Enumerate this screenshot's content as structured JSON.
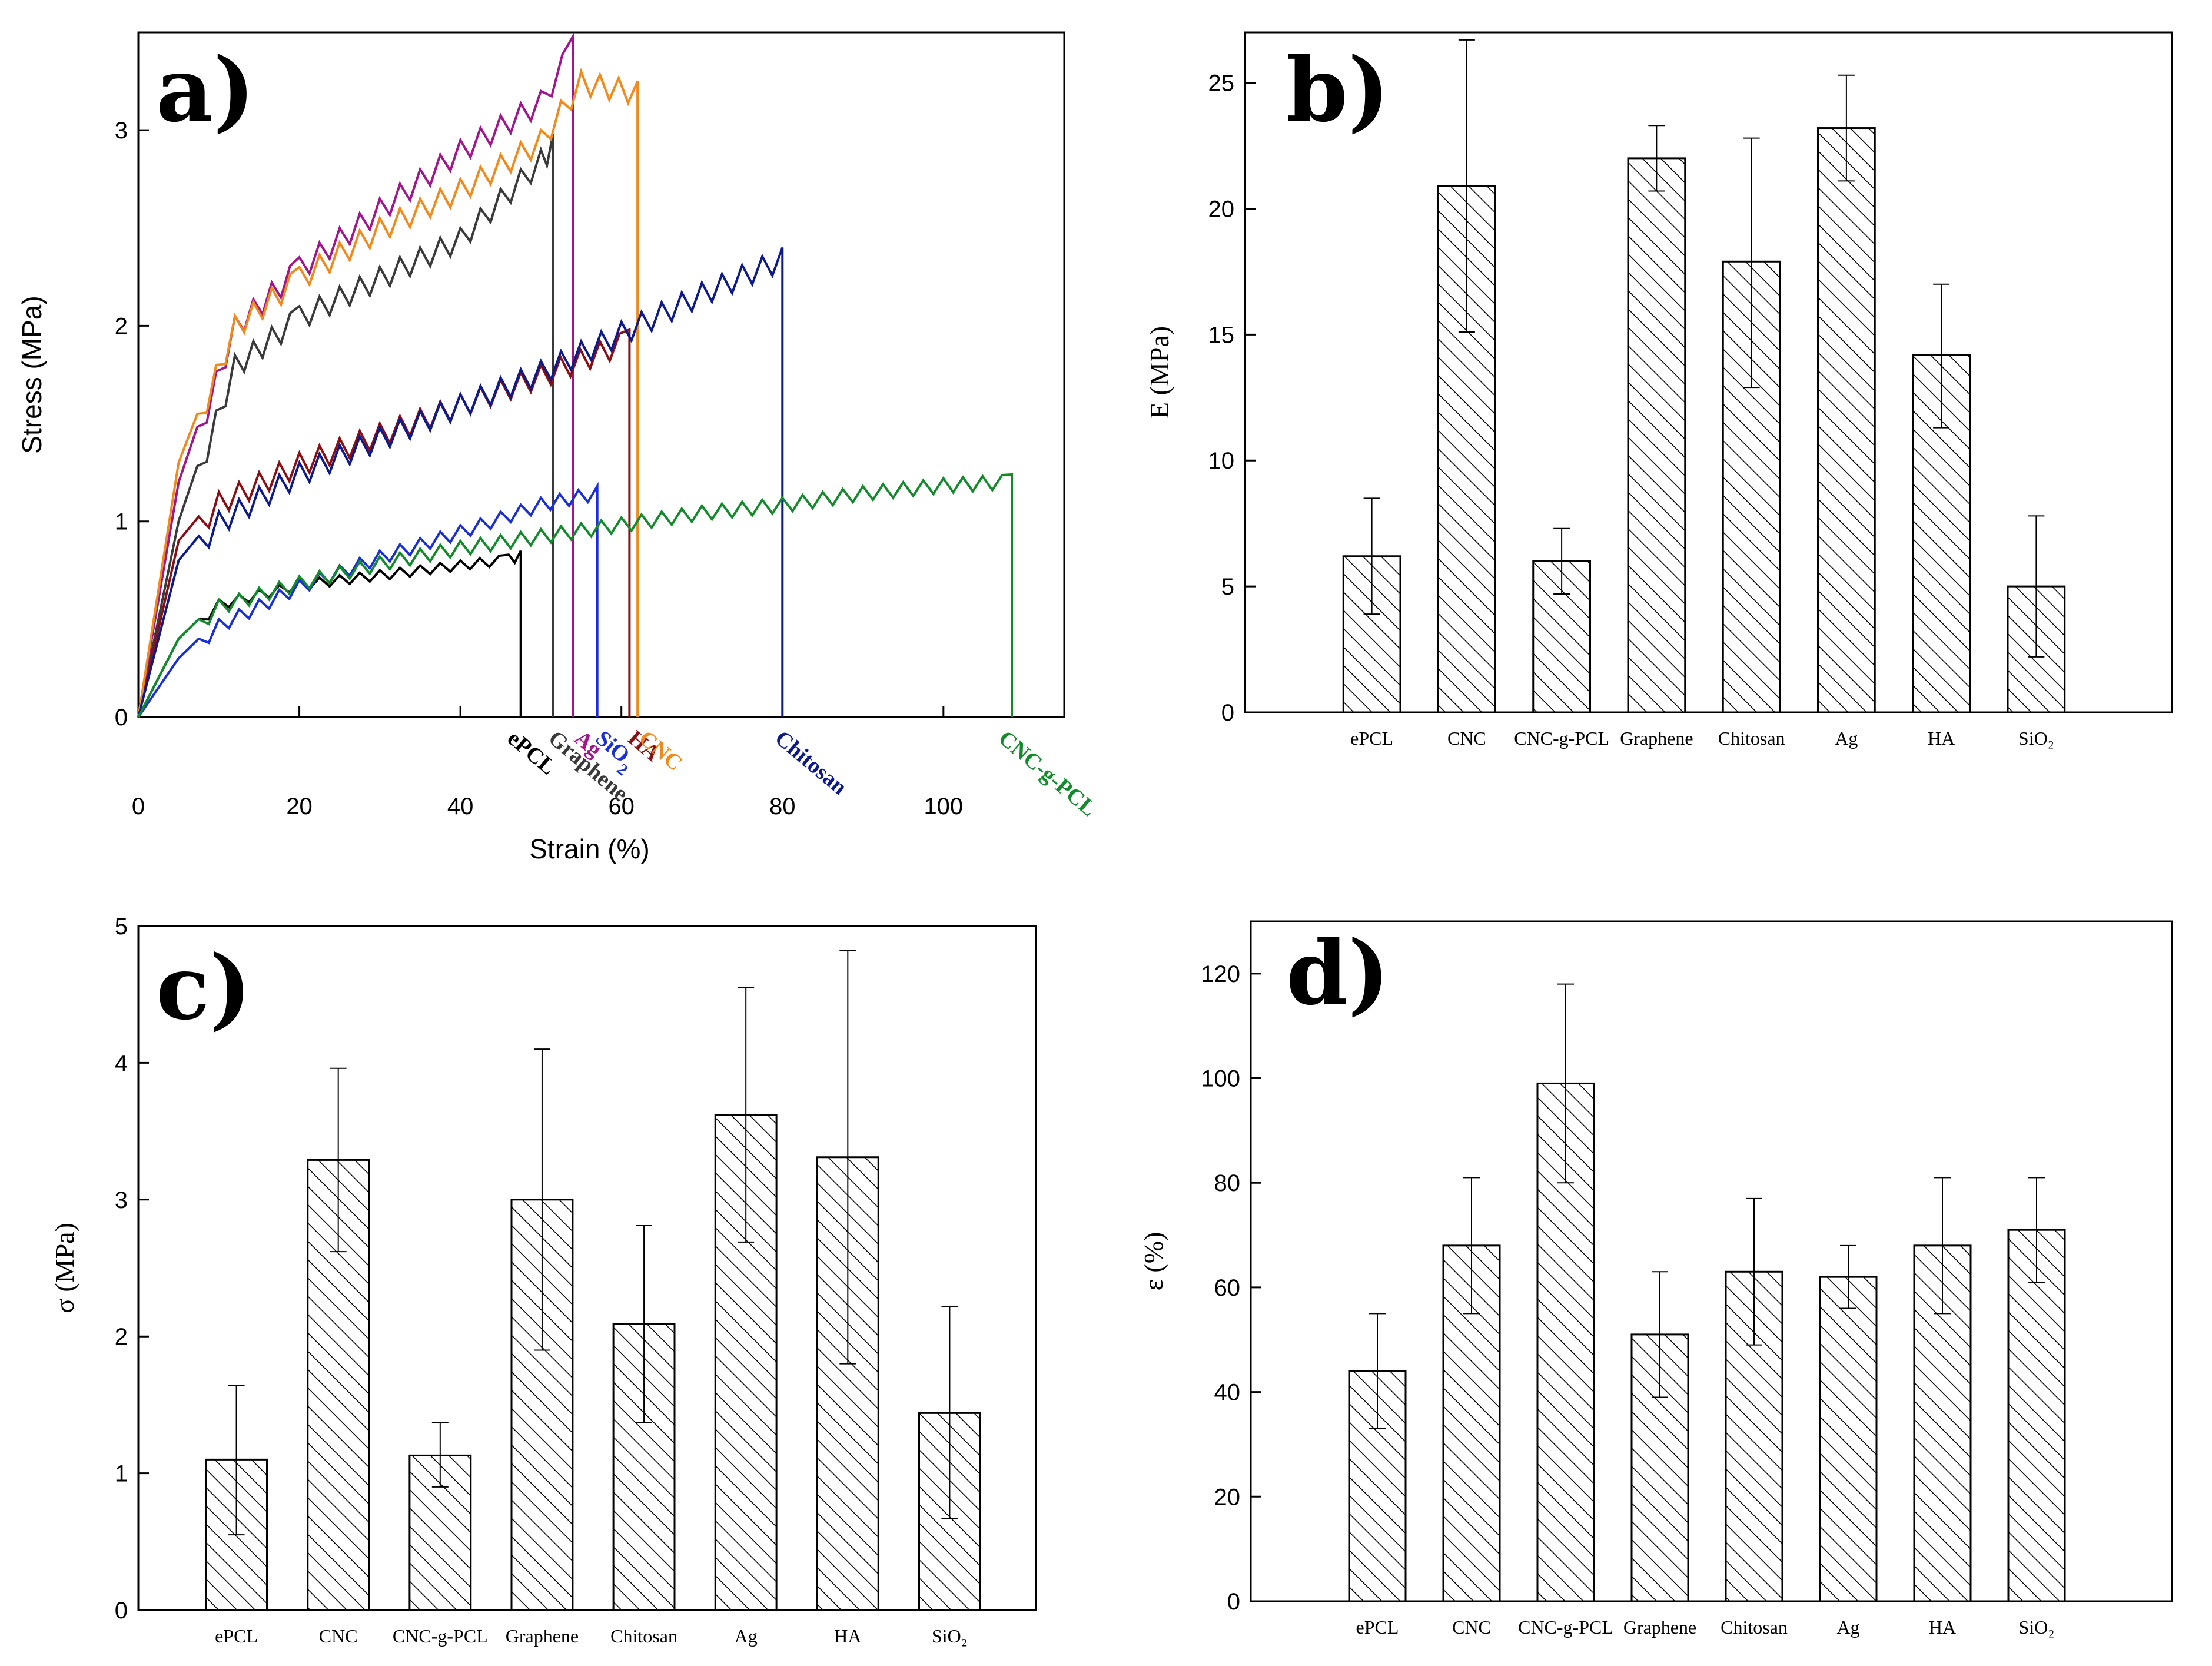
{
  "chart_data": [
    {
      "panel": "a)",
      "type": "line",
      "xlabel": "Strain (%)",
      "ylabel": "Stress (MPa)",
      "xlim": [
        0,
        115
      ],
      "ylim": [
        0,
        3.5
      ],
      "xticks": [
        "0",
        "20",
        "40",
        "60",
        "80",
        "100"
      ],
      "yticks": [
        "0",
        "1",
        "2",
        "3"
      ],
      "series": [
        {
          "name": "ePCL",
          "color": "#000000",
          "x": [
            0,
            5,
            10,
            20,
            30,
            40,
            46,
            47.5
          ],
          "y": [
            0,
            0.4,
            0.6,
            0.7,
            0.75,
            0.8,
            0.83,
            0.85
          ]
        },
        {
          "name": "Graphene",
          "color": "#3a3a3a",
          "x": [
            0,
            5,
            12,
            20,
            30,
            40,
            50,
            51.5
          ],
          "y": [
            0,
            1.0,
            1.85,
            2.1,
            2.3,
            2.5,
            2.9,
            2.98
          ]
        },
        {
          "name": "Ag",
          "color": "#a0168c",
          "x": [
            0,
            5,
            12,
            20,
            30,
            40,
            50,
            54
          ],
          "y": [
            0,
            1.2,
            2.05,
            2.35,
            2.65,
            2.95,
            3.2,
            3.48
          ]
        },
        {
          "name": "SiO2",
          "color": "#1a2fd6",
          "x": [
            0,
            5,
            10,
            20,
            30,
            40,
            50,
            57
          ],
          "y": [
            0,
            0.3,
            0.5,
            0.7,
            0.85,
            0.98,
            1.12,
            1.18
          ]
        },
        {
          "name": "HA",
          "color": "#8a0f14",
          "x": [
            0,
            5,
            10,
            20,
            30,
            40,
            50,
            61
          ],
          "y": [
            0,
            0.9,
            1.15,
            1.35,
            1.5,
            1.65,
            1.8,
            1.98
          ]
        },
        {
          "name": "CNC",
          "color": "#f08a1c",
          "x": [
            0,
            5,
            12,
            20,
            30,
            40,
            50,
            55,
            62
          ],
          "y": [
            0,
            1.3,
            2.05,
            2.3,
            2.55,
            2.75,
            3.0,
            3.3,
            3.25
          ]
        },
        {
          "name": "Chitosan",
          "color": "#0c1a8c",
          "x": [
            0,
            5,
            10,
            20,
            30,
            40,
            50,
            60,
            70,
            80
          ],
          "y": [
            0,
            0.8,
            1.05,
            1.3,
            1.48,
            1.65,
            1.82,
            2.02,
            2.22,
            2.4
          ]
        },
        {
          "name": "CNC-g-PCL",
          "color": "#138a2c",
          "x": [
            0,
            5,
            10,
            20,
            30,
            40,
            50,
            60,
            70,
            80,
            90,
            100,
            108.5
          ],
          "y": [
            0,
            0.4,
            0.6,
            0.72,
            0.82,
            0.9,
            0.96,
            1.02,
            1.08,
            1.12,
            1.18,
            1.22,
            1.24
          ]
        }
      ]
    },
    {
      "panel": "b)",
      "type": "bar",
      "xlabel": "",
      "ylabel": "E (MPa)",
      "ylim": [
        0,
        27
      ],
      "yticks": [
        "0",
        "5",
        "10",
        "15",
        "20",
        "25"
      ],
      "categories": [
        "ePCL",
        "CNC",
        "CNC-g-PCL",
        "Graphene",
        "Chitosan",
        "Ag",
        "HA",
        "SiO₂"
      ],
      "values": [
        6.2,
        20.9,
        6.0,
        22.0,
        17.9,
        23.2,
        14.2,
        5.0
      ],
      "err_high": [
        8.5,
        26.7,
        7.3,
        23.3,
        22.8,
        25.3,
        17.0,
        7.8
      ],
      "err_low": [
        3.9,
        15.1,
        4.7,
        20.7,
        12.9,
        21.1,
        11.3,
        2.2
      ]
    },
    {
      "panel": "c)",
      "type": "bar",
      "xlabel": "",
      "ylabel": "σ (MPa)",
      "ylim": [
        0,
        5
      ],
      "yticks": [
        "0",
        "1",
        "2",
        "3",
        "4",
        "5"
      ],
      "categories": [
        "ePCL",
        "CNC",
        "CNC-g-PCL",
        "Graphene",
        "Chitosan",
        "Ag",
        "HA",
        "SiO₂"
      ],
      "values": [
        1.1,
        3.29,
        1.13,
        3.0,
        2.09,
        3.62,
        3.31,
        1.44
      ],
      "err_high": [
        1.64,
        3.96,
        1.37,
        4.1,
        2.81,
        4.55,
        4.82,
        2.22
      ],
      "err_low": [
        0.55,
        2.62,
        0.9,
        1.9,
        1.37,
        2.69,
        1.8,
        0.67
      ]
    },
    {
      "panel": "d)",
      "type": "bar",
      "xlabel": "",
      "ylabel": "ε (%)",
      "ylim": [
        0,
        130
      ],
      "yticks": [
        "0",
        "20",
        "40",
        "60",
        "80",
        "100",
        "120"
      ],
      "categories": [
        "ePCL",
        "CNC",
        "CNC-g-PCL",
        "Graphene",
        "Chitosan",
        "Ag",
        "HA",
        "SiO₂"
      ],
      "values": [
        44,
        68,
        99,
        51,
        63,
        62,
        68,
        71
      ],
      "err_high": [
        55,
        81,
        118,
        63,
        77,
        68,
        81,
        81
      ],
      "err_low": [
        33,
        55,
        80,
        39,
        49,
        56,
        55,
        61
      ]
    }
  ]
}
